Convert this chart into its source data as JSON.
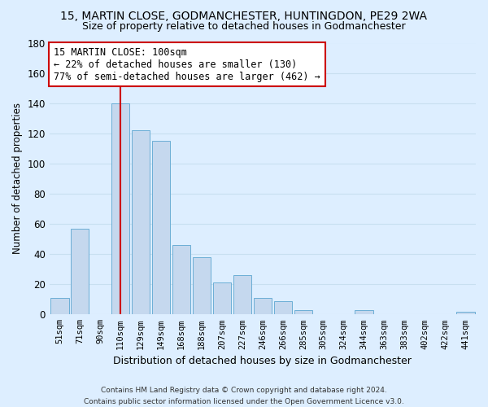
{
  "title": "15, MARTIN CLOSE, GODMANCHESTER, HUNTINGDON, PE29 2WA",
  "subtitle": "Size of property relative to detached houses in Godmanchester",
  "xlabel": "Distribution of detached houses by size in Godmanchester",
  "ylabel": "Number of detached properties",
  "bar_labels": [
    "51sqm",
    "71sqm",
    "90sqm",
    "110sqm",
    "129sqm",
    "149sqm",
    "168sqm",
    "188sqm",
    "207sqm",
    "227sqm",
    "246sqm",
    "266sqm",
    "285sqm",
    "305sqm",
    "324sqm",
    "344sqm",
    "363sqm",
    "383sqm",
    "402sqm",
    "422sqm",
    "441sqm"
  ],
  "bar_values": [
    11,
    57,
    0,
    140,
    122,
    115,
    46,
    38,
    21,
    26,
    11,
    9,
    3,
    0,
    0,
    3,
    0,
    0,
    0,
    0,
    2
  ],
  "bar_color": "#c5d8ee",
  "bar_edge_color": "#6baed6",
  "grid_color": "#c8dff0",
  "annotation_line1": "15 MARTIN CLOSE: 100sqm",
  "annotation_line2": "← 22% of detached houses are smaller (130)",
  "annotation_line3": "77% of semi-detached houses are larger (462) →",
  "annotation_box_color": "white",
  "annotation_box_edge_color": "#cc0000",
  "vline_color": "#cc0000",
  "ylim": [
    0,
    180
  ],
  "yticks": [
    0,
    20,
    40,
    60,
    80,
    100,
    120,
    140,
    160,
    180
  ],
  "footer_line1": "Contains HM Land Registry data © Crown copyright and database right 2024.",
  "footer_line2": "Contains public sector information licensed under the Open Government Licence v3.0.",
  "background_color": "#ddeeff"
}
